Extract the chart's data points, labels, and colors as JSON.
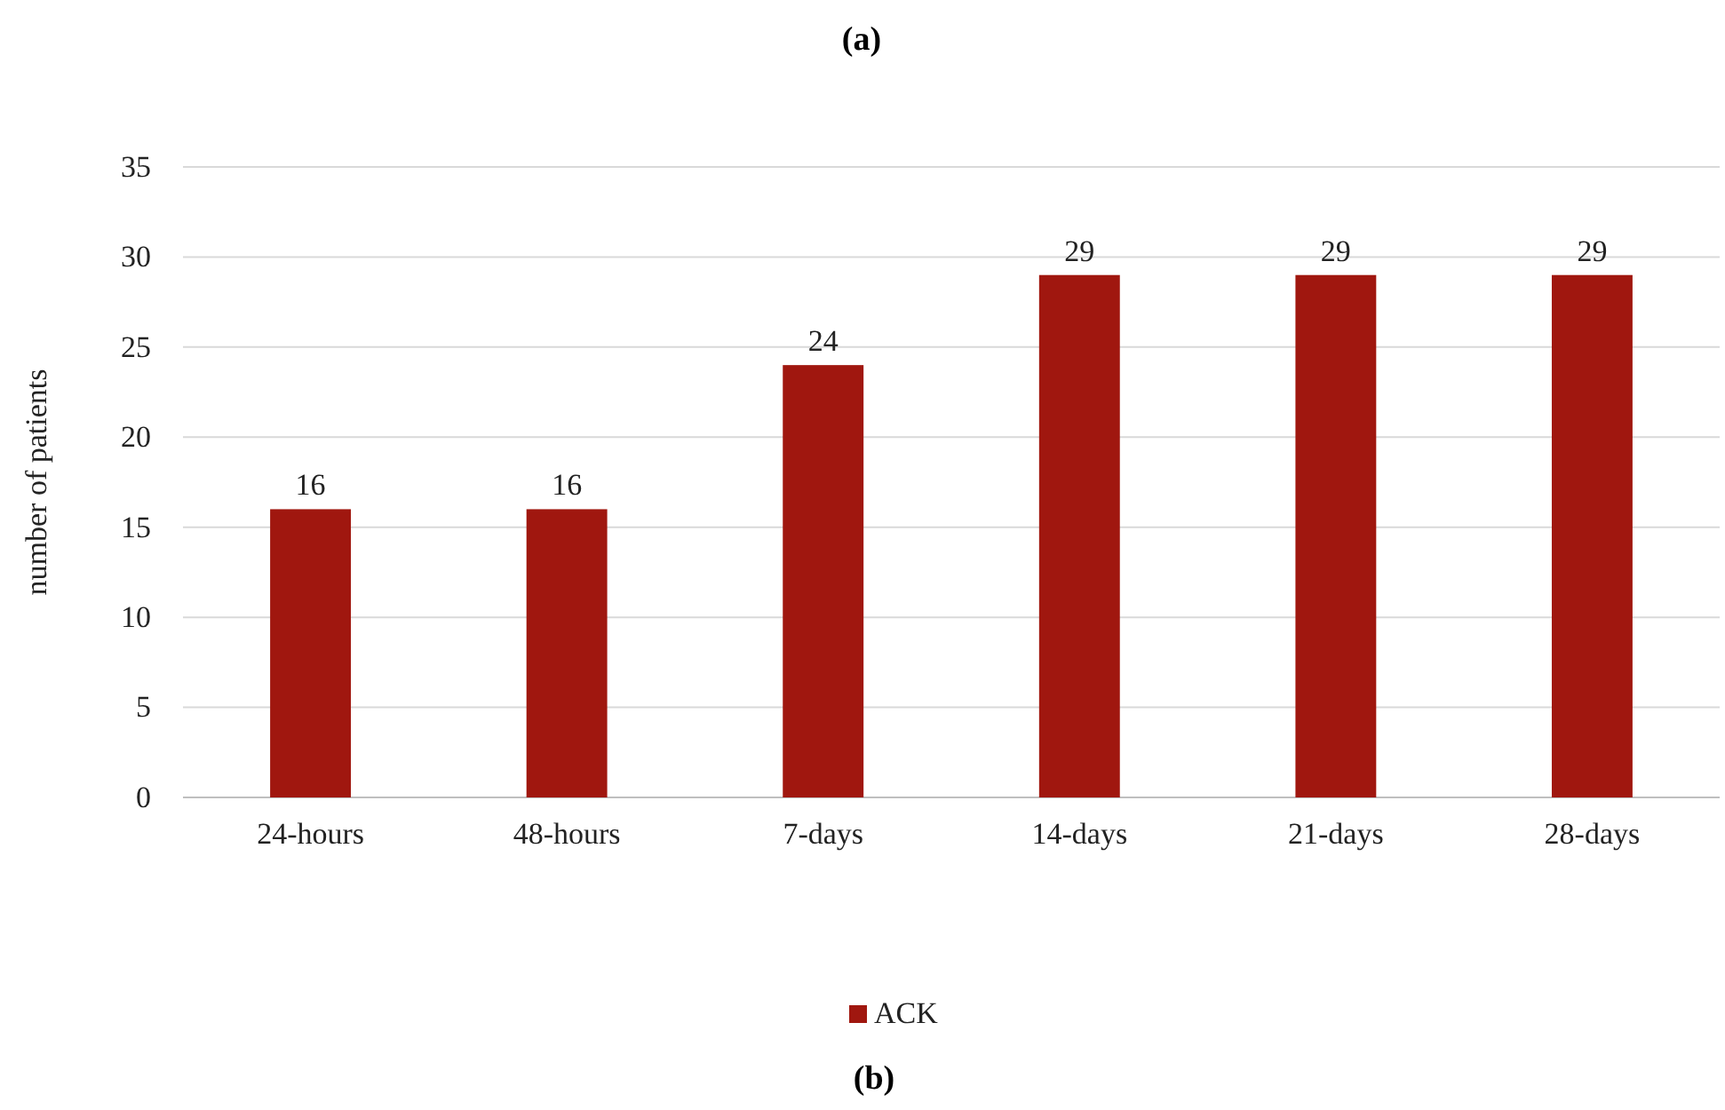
{
  "chart_data": {
    "type": "bar",
    "title": "(a)",
    "ylabel": "number of patients",
    "categories": [
      "24-hours",
      "48-hours",
      "7-days",
      "14-days",
      "21-days",
      "28-days"
    ],
    "series": [
      {
        "name": "ACK",
        "color": "#a0170f",
        "values": [
          16,
          16,
          24,
          29,
          29,
          29
        ]
      }
    ],
    "ylim": [
      0,
      35
    ],
    "yticks": [
      0,
      5,
      10,
      15,
      20,
      25,
      30,
      35
    ],
    "grid": "y",
    "data_labels": true,
    "legend": "bottom",
    "annotations": [
      "(b)"
    ]
  }
}
